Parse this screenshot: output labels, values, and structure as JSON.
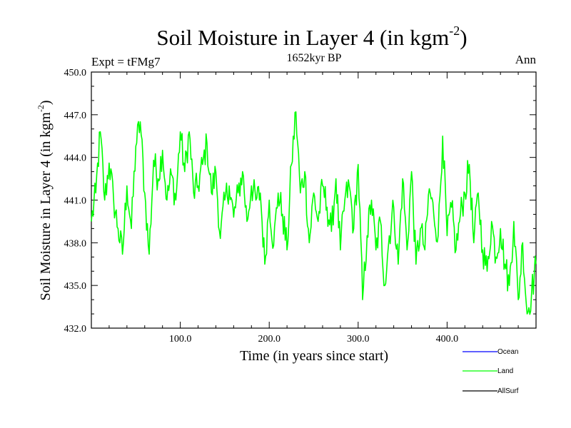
{
  "chart_data": {
    "type": "line",
    "title": "Soil Moisture in Layer 4 (in kgm",
    "title_sup": "-2",
    "title_close": ")",
    "subtitle": "1652kyr BP",
    "left_label": "Expt = tFMg7",
    "right_label": "Ann",
    "xlabel": "Time (in years since start)",
    "ylabel": "Soil Moisture in Layer 4 (in kgm",
    "ylabel_sup": "-2",
    "ylabel_close": ")",
    "xlim": [
      0,
      500
    ],
    "ylim": [
      432,
      450
    ],
    "x_ticks": [
      100,
      200,
      300,
      400
    ],
    "x_tick_labels": [
      "100.0",
      "200.0",
      "300.0",
      "400.0"
    ],
    "y_ticks": [
      432,
      435,
      438,
      441,
      444,
      447,
      450
    ],
    "y_tick_labels": [
      "432.0",
      "435.0",
      "438.0",
      "441.0",
      "444.0",
      "447.0",
      "450.0"
    ],
    "legend": [
      {
        "name": "Ocean",
        "color": "#0000ff"
      },
      {
        "name": "Land",
        "color": "#00ff00"
      },
      {
        "name": "AllSurf",
        "color": "#000000"
      }
    ],
    "series": [
      {
        "name": "Land",
        "color": "#00ff00",
        "x": [
          0,
          5,
          10,
          15,
          20,
          25,
          30,
          35,
          40,
          45,
          50,
          55,
          60,
          65,
          70,
          75,
          80,
          85,
          90,
          95,
          100,
          105,
          110,
          115,
          120,
          125,
          130,
          135,
          140,
          145,
          150,
          155,
          160,
          165,
          170,
          175,
          180,
          185,
          190,
          195,
          200,
          205,
          210,
          215,
          220,
          225,
          230,
          235,
          240,
          245,
          250,
          255,
          260,
          265,
          270,
          275,
          280,
          285,
          290,
          295,
          300,
          305,
          310,
          315,
          320,
          325,
          330,
          335,
          340,
          345,
          350,
          355,
          360,
          365,
          370,
          375,
          380,
          385,
          390,
          395,
          400,
          405,
          410,
          415,
          420,
          425,
          430,
          435,
          440,
          445,
          450,
          455,
          460,
          465,
          470,
          475,
          480,
          485,
          490,
          495,
          500
        ],
        "values": [
          439.5,
          441.5,
          445.8,
          441,
          443.6,
          441,
          439,
          437.2,
          442,
          439,
          444.8,
          446.5,
          441.5,
          437.2,
          443.8,
          442.5,
          444.5,
          441,
          442.8,
          441,
          445.8,
          443,
          445.8,
          441.5,
          442,
          443.5,
          445,
          441.5,
          443,
          438.3,
          441,
          442,
          439.8,
          441.5,
          443,
          439.5,
          442,
          441,
          441.5,
          436.5,
          441,
          437.8,
          441.5,
          440,
          437.5,
          443.5,
          447.2,
          441.5,
          443,
          438,
          441.5,
          439.5,
          442,
          440.5,
          438.8,
          442.5,
          437.5,
          441,
          442,
          439,
          443.5,
          434,
          438.5,
          441,
          437.5,
          439.5,
          435,
          438.5,
          440.5,
          436.5,
          442.5,
          437.5,
          443,
          436.5,
          439,
          437.5,
          441.8,
          440,
          438.5,
          445.5,
          438.5,
          440.5,
          437.5,
          440,
          441.5,
          443.5,
          438,
          441.5,
          437.5,
          436,
          439.5,
          437,
          439,
          436.5,
          435,
          439.5,
          434,
          438,
          433,
          434.5,
          436.5
        ]
      }
    ]
  }
}
